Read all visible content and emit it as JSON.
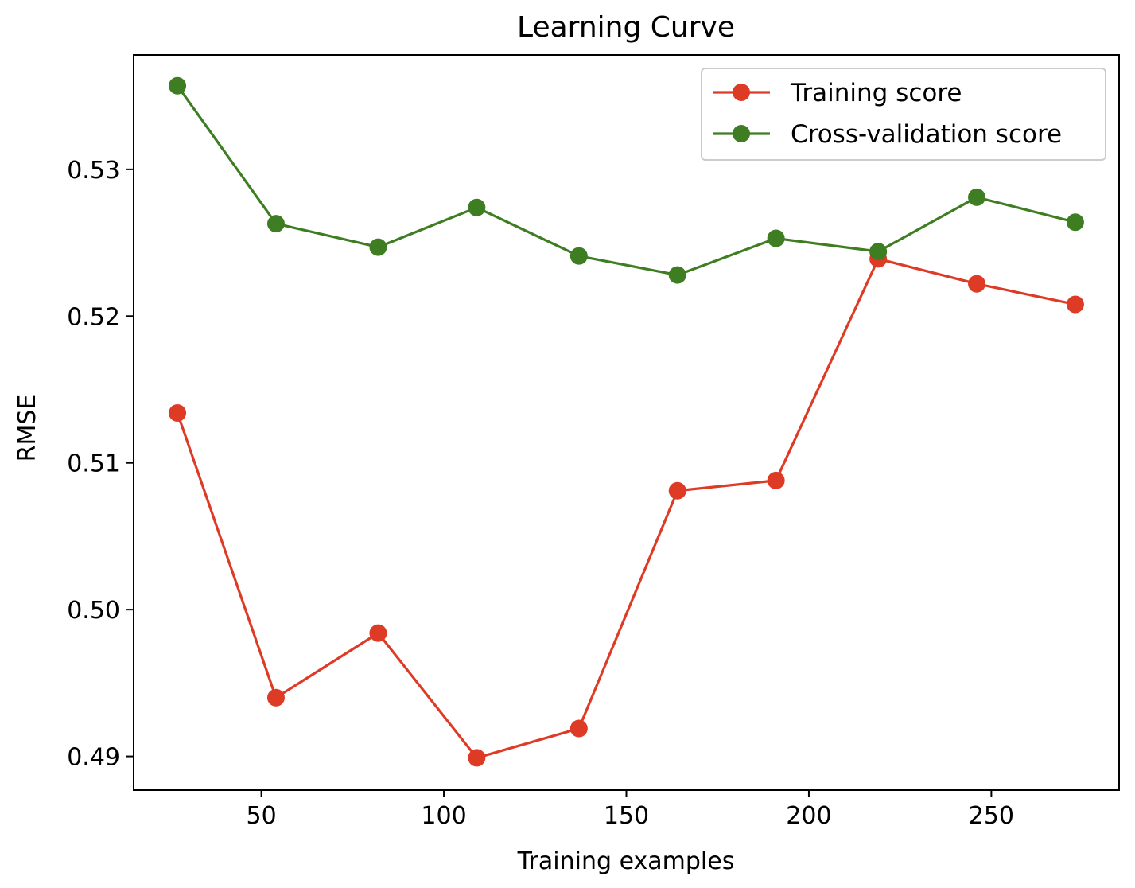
{
  "chart_data": {
    "type": "line",
    "title": "Learning Curve",
    "xlabel": "Training examples",
    "ylabel": "RMSE",
    "x": [
      27,
      54,
      82,
      109,
      137,
      164,
      191,
      219,
      246,
      273
    ],
    "xlim": [
      15,
      285
    ],
    "ylim": [
      0.4877,
      0.5378
    ],
    "xticks": [
      50,
      100,
      150,
      200,
      250
    ],
    "xtick_labels": [
      "50",
      "100",
      "150",
      "200",
      "250"
    ],
    "yticks": [
      0.49,
      0.5,
      0.51,
      0.52,
      0.53
    ],
    "ytick_labels": [
      "0.49",
      "0.50",
      "0.51",
      "0.52",
      "0.53"
    ],
    "grid": false,
    "legend_position": "top-right",
    "series": [
      {
        "name": "Training score",
        "color": "#dd3b26",
        "values": [
          0.5134,
          0.494,
          0.4984,
          0.4899,
          0.4919,
          0.5081,
          0.5088,
          0.5239,
          0.5222,
          0.5208
        ]
      },
      {
        "name": "Cross-validation score",
        "color": "#3e7d22",
        "values": [
          0.5357,
          0.5263,
          0.5247,
          0.5274,
          0.5241,
          0.5228,
          0.5253,
          0.5244,
          0.5281,
          0.5264
        ]
      }
    ]
  }
}
